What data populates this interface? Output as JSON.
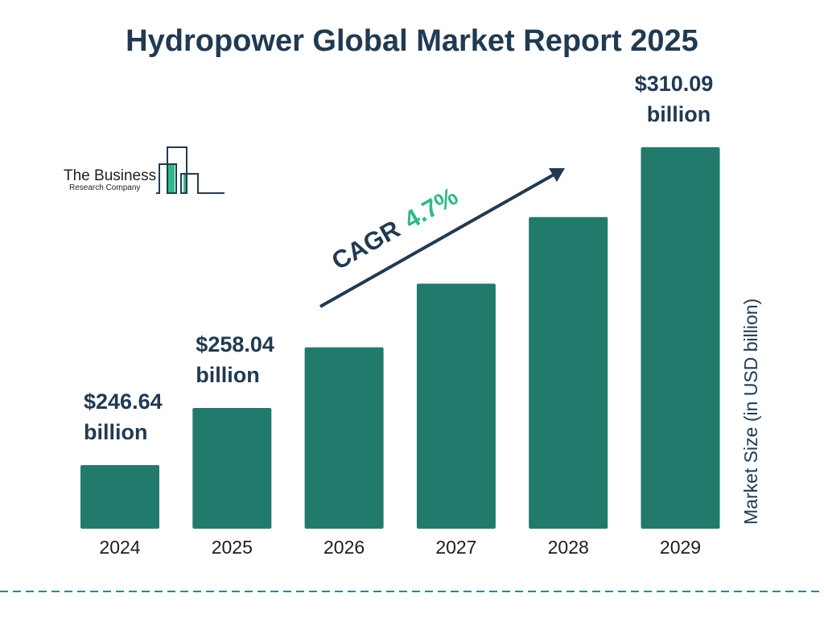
{
  "title": "Hydropower Global Market Report 2025",
  "logo": {
    "line1": "The Business",
    "line2": "Research Company"
  },
  "chart_data": {
    "type": "bar",
    "title": "Hydropower Global Market Report 2025",
    "categories": [
      "2024",
      "2025",
      "2026",
      "2027",
      "2028",
      "2029"
    ],
    "values": [
      246.64,
      258.04,
      270.16,
      282.86,
      296.15,
      310.09
    ],
    "data_labels": [
      {
        "index": 0,
        "line1": "$246.64",
        "line2": "billion"
      },
      {
        "index": 1,
        "line1": "$258.04",
        "line2": "billion"
      },
      {
        "index": 5,
        "line1": "$310.09",
        "line2": "billion"
      }
    ],
    "ylabel": "Market Size (in USD billion)",
    "xlabel": "",
    "grid": false,
    "annotation": {
      "label": "CAGR",
      "value": "4.7%"
    },
    "colors": {
      "bar": "#217a6b",
      "text": "#213a52",
      "accent": "#2dbb85",
      "dash": "#2a8a8a"
    }
  }
}
